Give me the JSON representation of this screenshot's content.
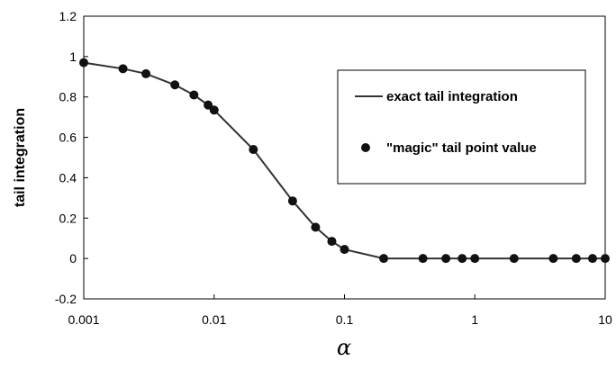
{
  "chart_data": {
    "type": "line",
    "title": "",
    "xlabel": "α",
    "ylabel": "tail integration",
    "x_scale": "log",
    "xlim": [
      0.001,
      10
    ],
    "ylim": [
      -0.2,
      1.2
    ],
    "x_tick_labels": [
      "0.001",
      "0.01",
      "0.1",
      "1",
      "10"
    ],
    "y_tick_labels": [
      "-0.2",
      "0",
      "0.2",
      "0.4",
      "0.6",
      "0.8",
      "1",
      "1.2"
    ],
    "grid": false,
    "legend_position": "right",
    "series": [
      {
        "name": "exact tail integration",
        "style": "line",
        "color": "#333333",
        "x": [
          0.001,
          0.002,
          0.003,
          0.005,
          0.007,
          0.009,
          0.01,
          0.02,
          0.04,
          0.06,
          0.08,
          0.1,
          0.2,
          0.4,
          0.6,
          0.8,
          1,
          2,
          4,
          6,
          8,
          10
        ],
        "y": [
          0.97,
          0.94,
          0.915,
          0.86,
          0.81,
          0.76,
          0.735,
          0.54,
          0.285,
          0.155,
          0.085,
          0.045,
          0.0,
          0.0,
          0.0,
          0.0,
          0.0,
          0.0,
          0.0,
          0.0,
          0.0,
          0.0
        ]
      },
      {
        "name": "\"magic\" tail point value",
        "style": "markers",
        "color": "#111111",
        "x": [
          0.001,
          0.002,
          0.003,
          0.005,
          0.007,
          0.009,
          0.01,
          0.02,
          0.04,
          0.06,
          0.08,
          0.1,
          0.2,
          0.4,
          0.6,
          0.8,
          1,
          2,
          4,
          6,
          8,
          10
        ],
        "y": [
          0.97,
          0.94,
          0.915,
          0.86,
          0.81,
          0.76,
          0.735,
          0.54,
          0.285,
          0.155,
          0.085,
          0.045,
          0.0,
          0.0,
          0.0,
          0.0,
          0.0,
          0.0,
          0.0,
          0.0,
          0.0,
          0.0
        ]
      }
    ]
  }
}
